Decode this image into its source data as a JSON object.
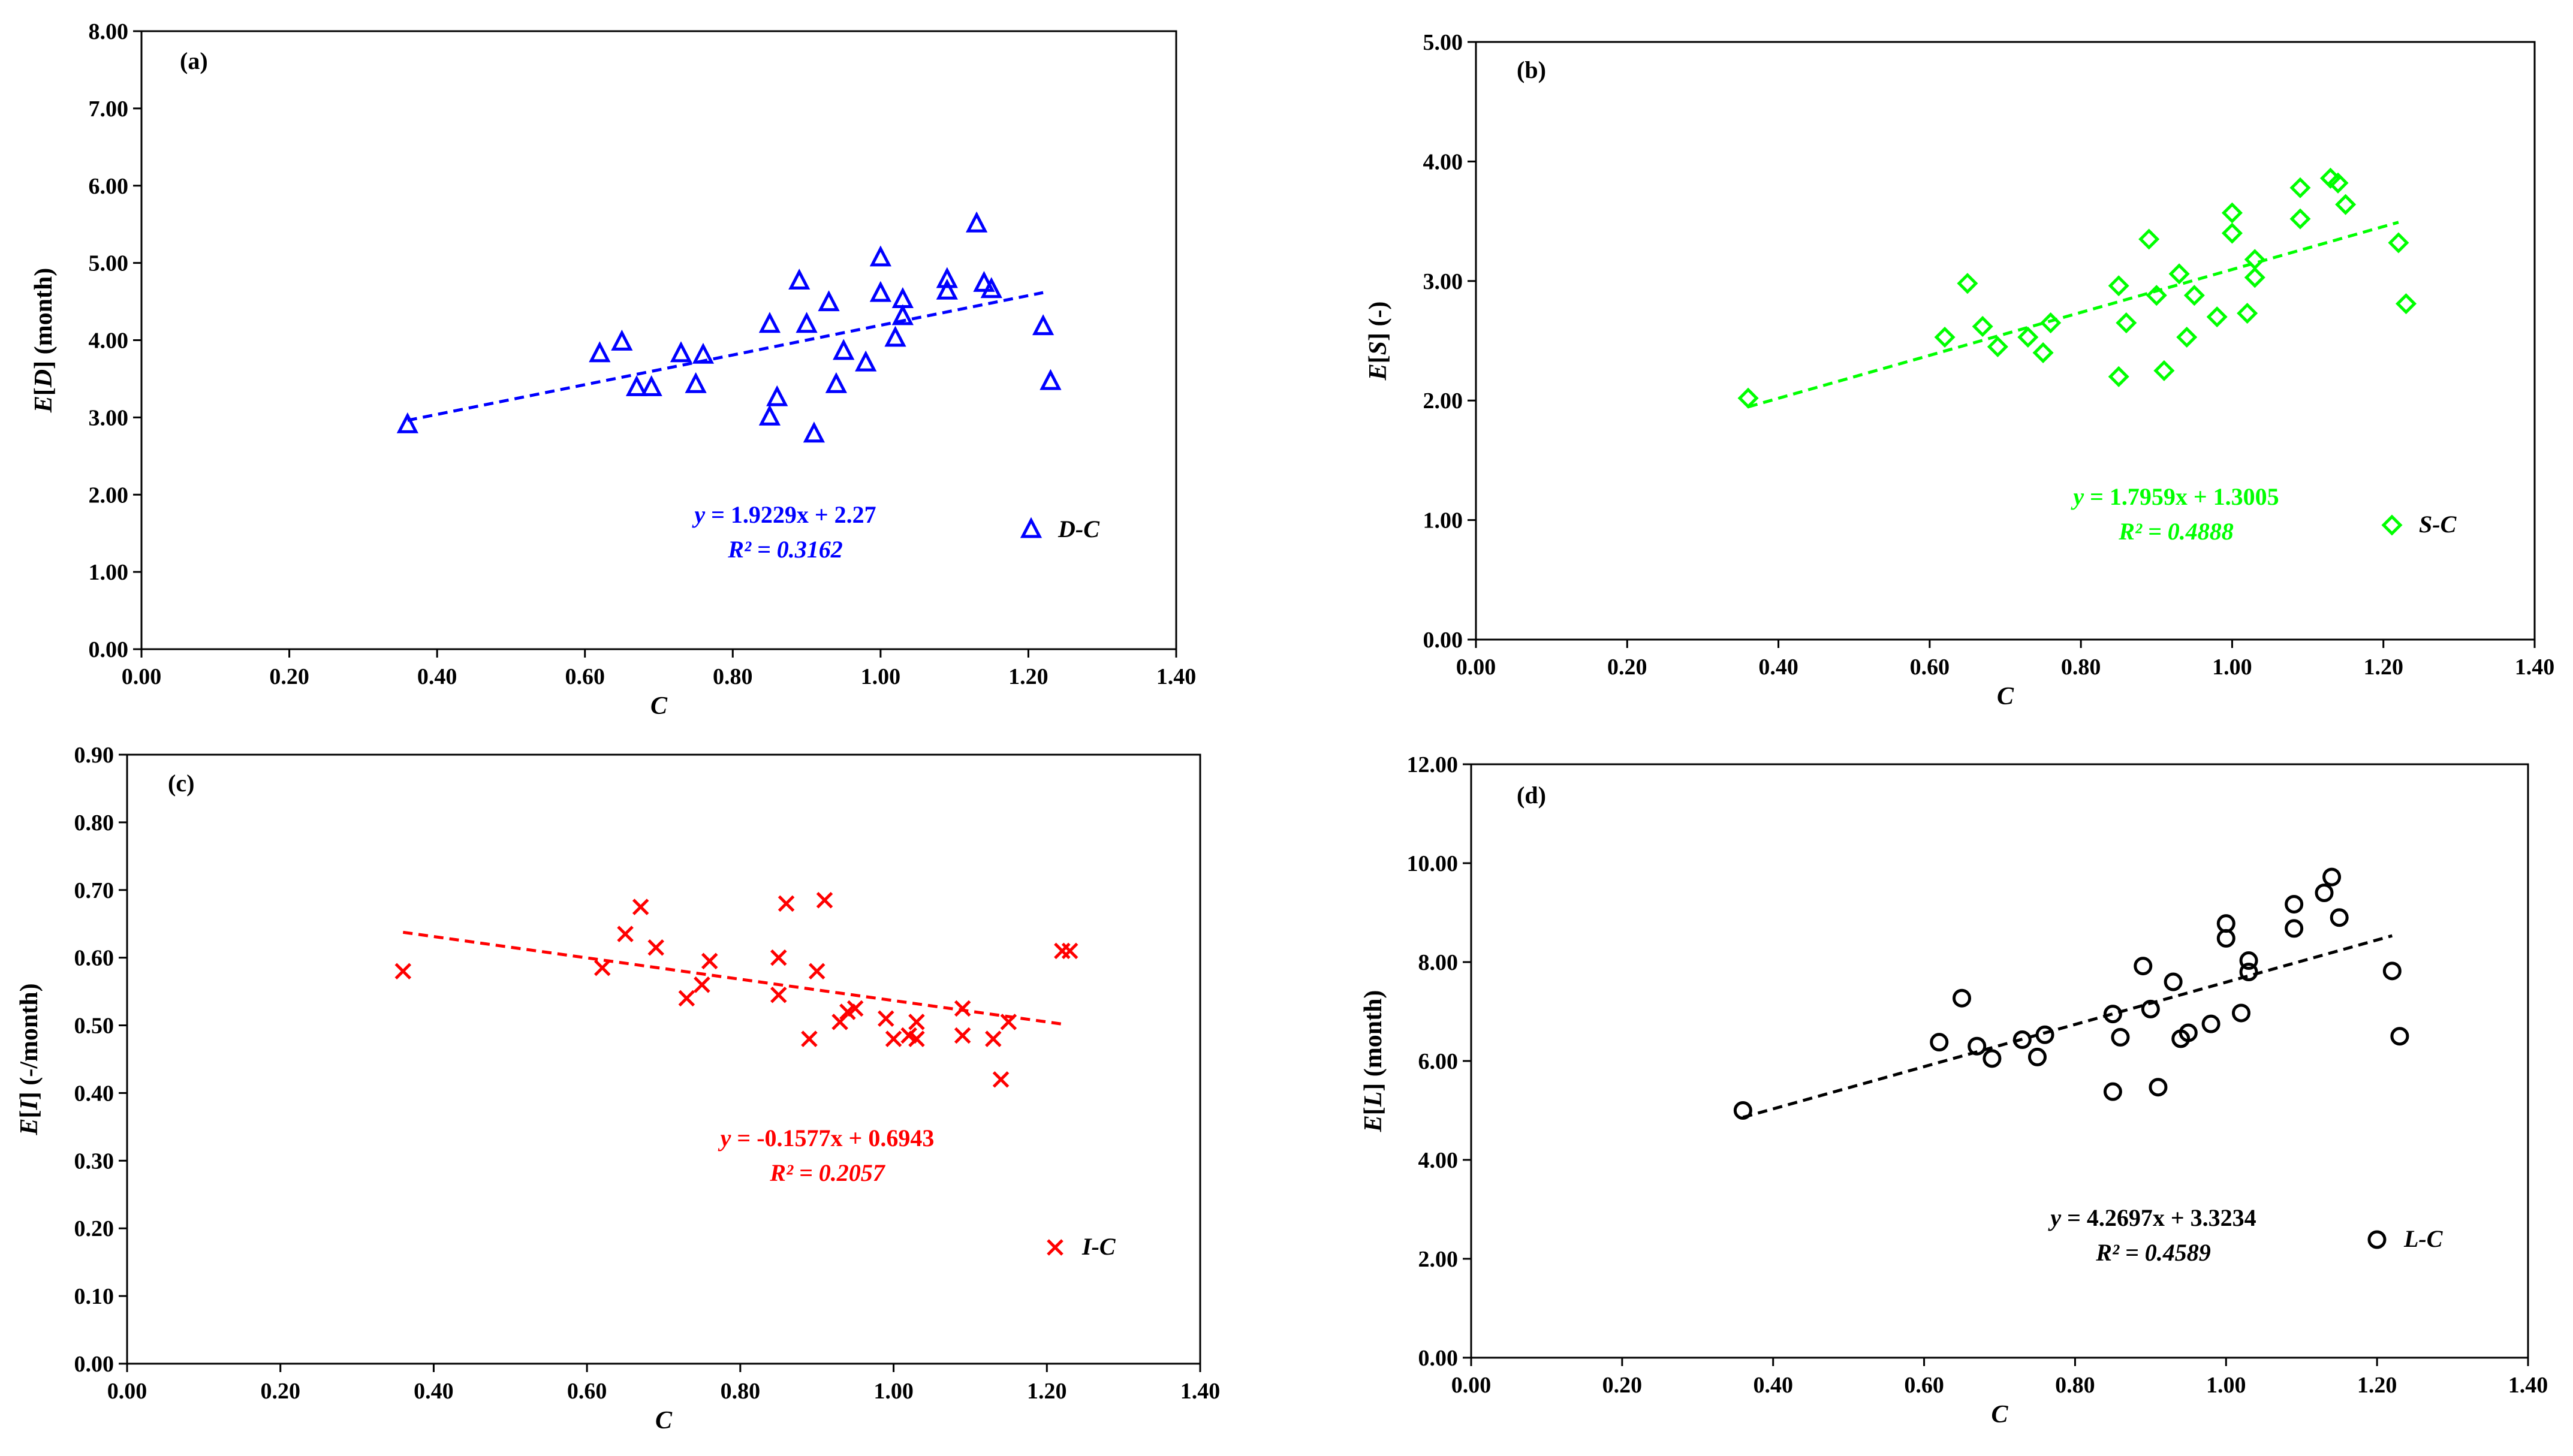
{
  "chart_data": [
    {
      "type": "scatter",
      "panel_label": "(a)",
      "xlabel": "C",
      "ylabel": "E[D] (month)",
      "xlim": [
        0,
        1.4
      ],
      "ylim": [
        0,
        8
      ],
      "x_ticks": [
        "0.00",
        "0.20",
        "0.40",
        "0.60",
        "0.80",
        "1.00",
        "1.20",
        "1.40"
      ],
      "y_ticks": [
        "0.00",
        "1.00",
        "2.00",
        "3.00",
        "4.00",
        "5.00",
        "6.00",
        "7.00",
        "8.00"
      ],
      "marker": "triangle",
      "color": "#0000ff",
      "legend": "D-C",
      "equation": "y = 1.9229x + 2.27",
      "r_squared": "R² = 0.3162",
      "trend": {
        "slope": 1.9229,
        "intercept": 2.27,
        "x_range": [
          0.36,
          1.22
        ]
      },
      "points": [
        [
          0.36,
          2.9
        ],
        [
          0.62,
          3.82
        ],
        [
          0.65,
          3.97
        ],
        [
          0.67,
          3.38
        ],
        [
          0.69,
          3.38
        ],
        [
          0.73,
          3.82
        ],
        [
          0.75,
          3.42
        ],
        [
          0.76,
          3.8
        ],
        [
          0.85,
          4.2
        ],
        [
          0.85,
          3.0
        ],
        [
          0.86,
          3.25
        ],
        [
          0.89,
          4.76
        ],
        [
          0.9,
          4.2
        ],
        [
          0.91,
          2.78
        ],
        [
          0.93,
          4.48
        ],
        [
          0.94,
          3.42
        ],
        [
          0.95,
          3.85
        ],
        [
          0.98,
          3.7
        ],
        [
          1.0,
          5.06
        ],
        [
          1.0,
          4.6
        ],
        [
          1.02,
          4.02
        ],
        [
          1.03,
          4.52
        ],
        [
          1.03,
          4.3
        ],
        [
          1.09,
          4.78
        ],
        [
          1.09,
          4.63
        ],
        [
          1.13,
          5.5
        ],
        [
          1.14,
          4.73
        ],
        [
          1.15,
          4.65
        ],
        [
          1.22,
          4.17
        ],
        [
          1.23,
          3.46
        ]
      ]
    },
    {
      "type": "scatter",
      "panel_label": "(b)",
      "xlabel": "C",
      "ylabel": "E[S] (-)",
      "xlim": [
        0,
        1.4
      ],
      "ylim": [
        0,
        5
      ],
      "x_ticks": [
        "0.00",
        "0.20",
        "0.40",
        "0.60",
        "0.80",
        "1.00",
        "1.20",
        "1.40"
      ],
      "y_ticks": [
        "0.00",
        "1.00",
        "2.00",
        "3.00",
        "4.00",
        "5.00"
      ],
      "marker": "diamond",
      "color": "#00ff00",
      "legend": "S-C",
      "equation": "y = 1.7959x + 1.3005",
      "r_squared": "R² = 0.4888",
      "trend": {
        "slope": 1.7959,
        "intercept": 1.3005,
        "x_range": [
          0.36,
          1.22
        ]
      },
      "points": [
        [
          0.36,
          2.02
        ],
        [
          0.62,
          2.53
        ],
        [
          0.65,
          2.98
        ],
        [
          0.67,
          2.62
        ],
        [
          0.69,
          2.45
        ],
        [
          0.73,
          2.53
        ],
        [
          0.75,
          2.4
        ],
        [
          0.76,
          2.65
        ],
        [
          0.85,
          2.96
        ],
        [
          0.85,
          2.2
        ],
        [
          0.86,
          2.65
        ],
        [
          0.89,
          3.35
        ],
        [
          0.9,
          2.88
        ],
        [
          0.91,
          2.25
        ],
        [
          0.93,
          3.06
        ],
        [
          0.94,
          2.53
        ],
        [
          0.95,
          2.88
        ],
        [
          0.98,
          2.7
        ],
        [
          1.0,
          3.57
        ],
        [
          1.0,
          3.4
        ],
        [
          1.02,
          2.73
        ],
        [
          1.03,
          3.18
        ],
        [
          1.03,
          3.03
        ],
        [
          1.09,
          3.78
        ],
        [
          1.09,
          3.52
        ],
        [
          1.13,
          3.86
        ],
        [
          1.14,
          3.82
        ],
        [
          1.15,
          3.64
        ],
        [
          1.22,
          3.32
        ],
        [
          1.23,
          2.81
        ]
      ]
    },
    {
      "type": "scatter",
      "panel_label": "(c)",
      "xlabel": "C",
      "ylabel": "E[I] (-/month)",
      "xlim": [
        0,
        1.4
      ],
      "ylim": [
        0,
        0.9
      ],
      "x_ticks": [
        "0.00",
        "0.20",
        "0.40",
        "0.60",
        "0.80",
        "1.00",
        "1.20",
        "1.40"
      ],
      "y_ticks": [
        "0.00",
        "0.10",
        "0.20",
        "0.30",
        "0.40",
        "0.50",
        "0.60",
        "0.70",
        "0.80",
        "0.90"
      ],
      "marker": "cross",
      "color": "#ff0000",
      "legend": "I-C",
      "equation": "y = -0.1577x + 0.6943",
      "r_squared": "R² = 0.2057",
      "trend": {
        "slope": -0.1577,
        "intercept": 0.6943,
        "x_range": [
          0.36,
          1.22
        ]
      },
      "points": [
        [
          0.36,
          0.58
        ],
        [
          0.62,
          0.585
        ],
        [
          0.65,
          0.635
        ],
        [
          0.67,
          0.675
        ],
        [
          0.69,
          0.615
        ],
        [
          0.73,
          0.54
        ],
        [
          0.75,
          0.56
        ],
        [
          0.76,
          0.595
        ],
        [
          0.85,
          0.6
        ],
        [
          0.85,
          0.545
        ],
        [
          0.86,
          0.68
        ],
        [
          0.89,
          0.48
        ],
        [
          0.9,
          0.58
        ],
        [
          0.91,
          0.685
        ],
        [
          0.93,
          0.505
        ],
        [
          0.94,
          0.52
        ],
        [
          0.95,
          0.525
        ],
        [
          0.99,
          0.51
        ],
        [
          1.0,
          0.48
        ],
        [
          1.02,
          0.485
        ],
        [
          1.03,
          0.48
        ],
        [
          1.03,
          0.505
        ],
        [
          1.09,
          0.525
        ],
        [
          1.09,
          0.485
        ],
        [
          1.13,
          0.48
        ],
        [
          1.14,
          0.42
        ],
        [
          1.15,
          0.505
        ],
        [
          1.22,
          0.61
        ],
        [
          1.23,
          0.61
        ]
      ]
    },
    {
      "type": "scatter",
      "panel_label": "(d)",
      "xlabel": "C",
      "ylabel": "E[L] (month)",
      "xlim": [
        0,
        1.4
      ],
      "ylim": [
        0,
        12
      ],
      "x_ticks": [
        "0.00",
        "0.20",
        "0.40",
        "0.60",
        "0.80",
        "1.00",
        "1.20",
        "1.40"
      ],
      "y_ticks": [
        "0.00",
        "2.00",
        "4.00",
        "6.00",
        "8.00",
        "10.00",
        "12.00"
      ],
      "marker": "circle",
      "color": "#000000",
      "legend": "L-C",
      "equation": "y = 4.2697x + 3.3234",
      "r_squared": "R² = 0.4589",
      "trend": {
        "slope": 4.2697,
        "intercept": 3.3234,
        "x_range": [
          0.36,
          1.22
        ]
      },
      "points": [
        [
          0.36,
          5.0
        ],
        [
          0.62,
          6.38
        ],
        [
          0.65,
          7.27
        ],
        [
          0.67,
          6.3
        ],
        [
          0.69,
          6.05
        ],
        [
          0.73,
          6.43
        ],
        [
          0.75,
          6.08
        ],
        [
          0.76,
          6.53
        ],
        [
          0.85,
          6.95
        ],
        [
          0.85,
          5.38
        ],
        [
          0.86,
          6.48
        ],
        [
          0.89,
          7.92
        ],
        [
          0.9,
          7.05
        ],
        [
          0.91,
          5.47
        ],
        [
          0.93,
          7.6
        ],
        [
          0.94,
          6.45
        ],
        [
          0.95,
          6.57
        ],
        [
          0.98,
          6.75
        ],
        [
          1.0,
          8.78
        ],
        [
          1.0,
          8.48
        ],
        [
          1.02,
          6.97
        ],
        [
          1.03,
          8.03
        ],
        [
          1.03,
          7.8
        ],
        [
          1.09,
          9.17
        ],
        [
          1.09,
          8.68
        ],
        [
          1.13,
          9.4
        ],
        [
          1.14,
          9.72
        ],
        [
          1.15,
          8.9
        ],
        [
          1.22,
          7.82
        ],
        [
          1.23,
          6.5
        ]
      ]
    }
  ]
}
